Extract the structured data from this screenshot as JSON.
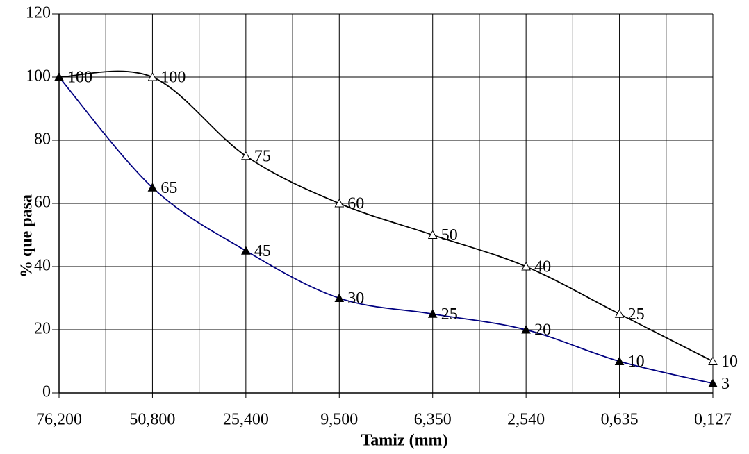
{
  "chart_data": {
    "type": "line",
    "x_label": "Tamiz (mm)",
    "y_label": "% que pasa",
    "categories": [
      "76,200",
      "50,800",
      "25,400",
      "9,500",
      "6,350",
      "2,540",
      "0,635",
      "0,127"
    ],
    "series": [
      {
        "color": "#000000",
        "marker": "open-triangle",
        "values": [
          100,
          100,
          75,
          60,
          50,
          40,
          25,
          10
        ]
      },
      {
        "color": "#000080",
        "marker": "filled-triangle",
        "values": [
          100,
          65,
          45,
          30,
          25,
          20,
          10,
          3
        ]
      }
    ],
    "ylim": [
      0,
      120
    ],
    "yticks": [
      0,
      20,
      40,
      60,
      80,
      100,
      120
    ],
    "grid": true
  }
}
